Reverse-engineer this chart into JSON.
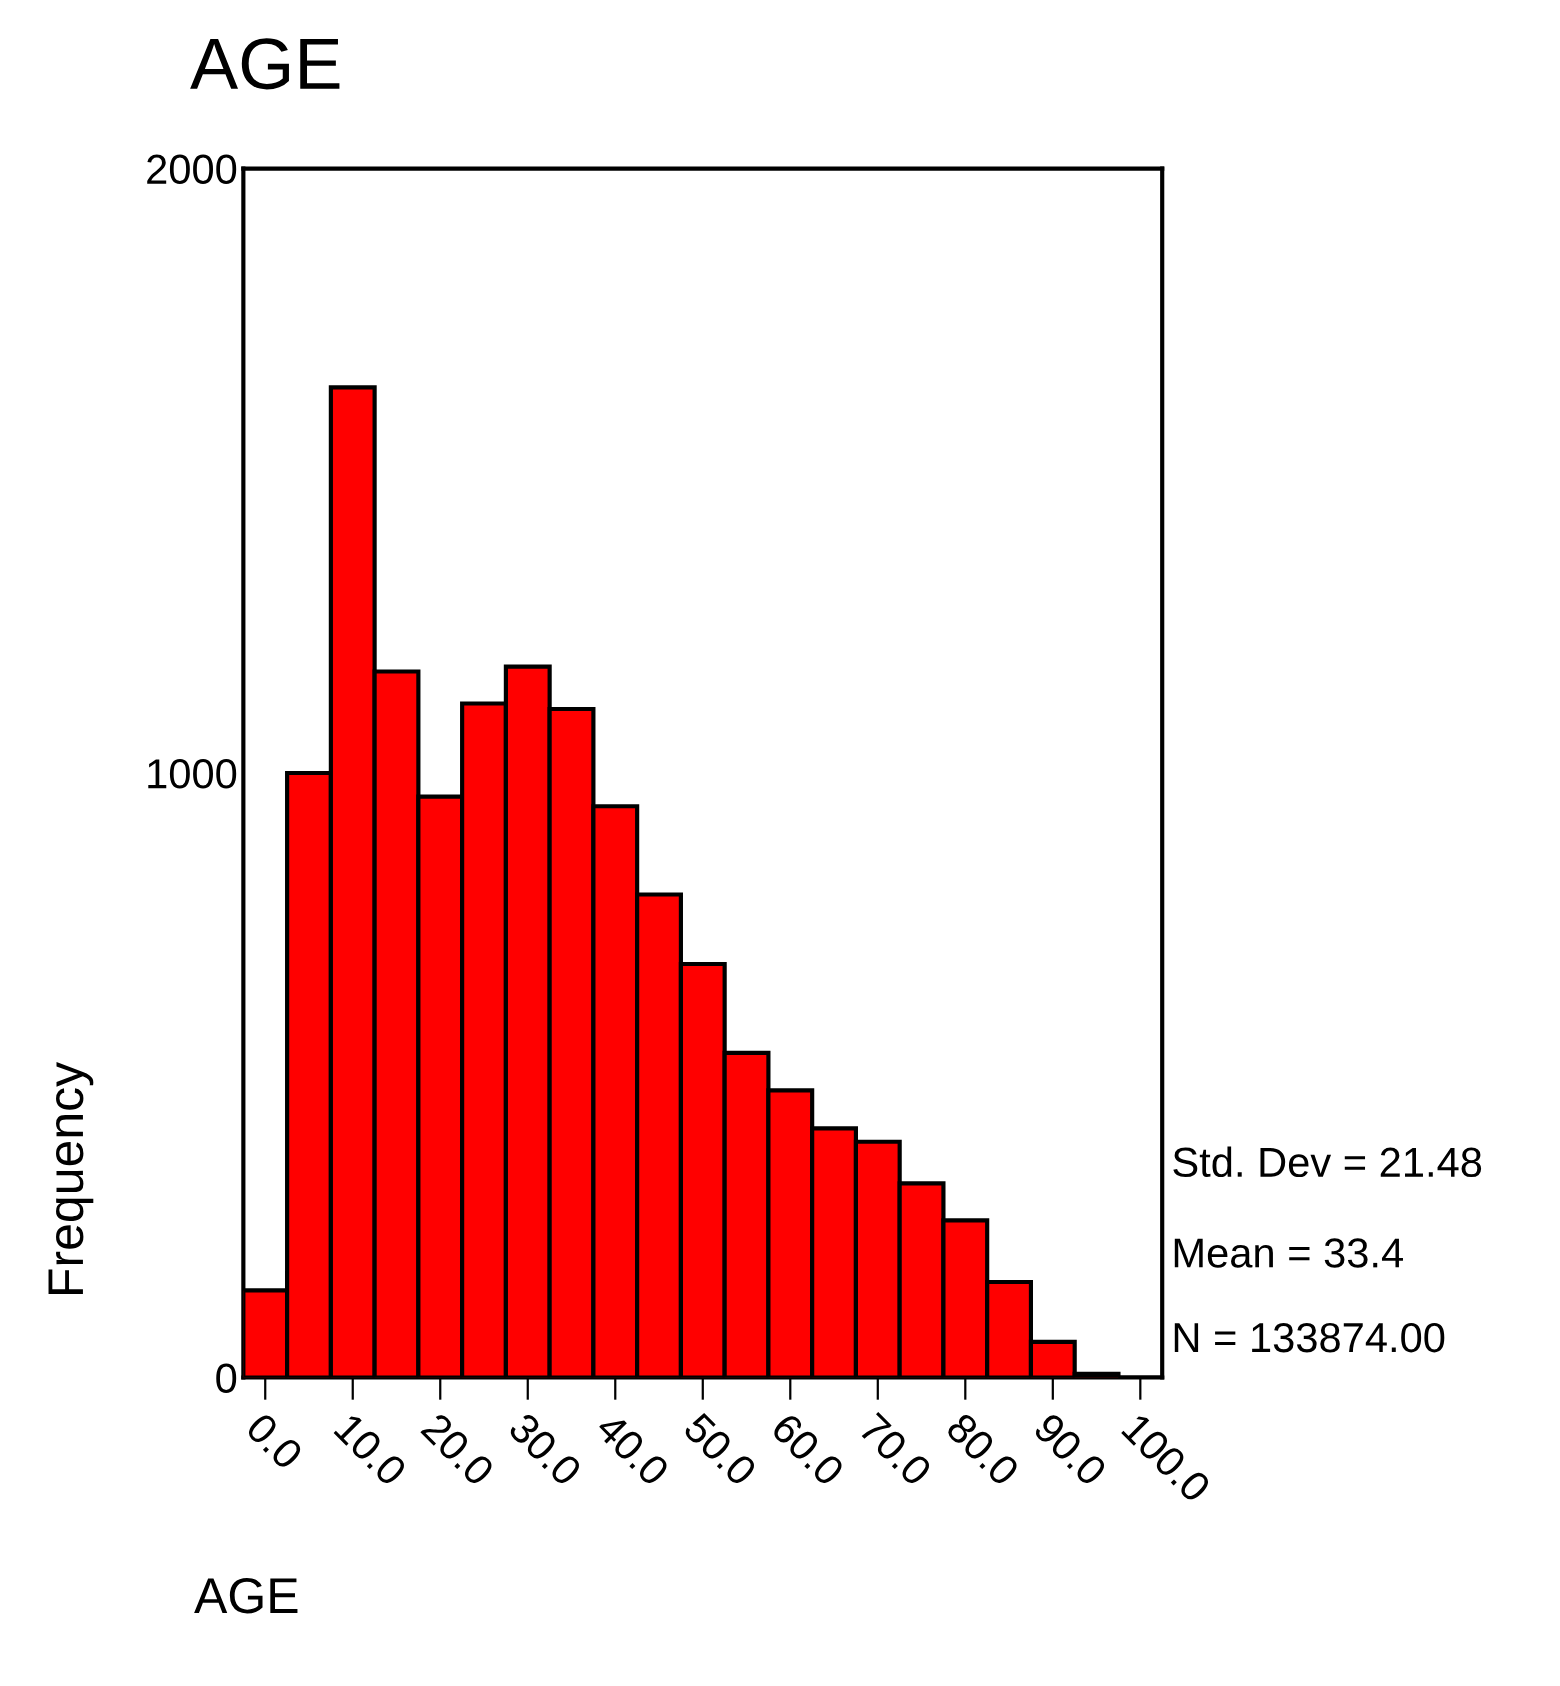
{
  "chart_data": {
    "type": "histogram",
    "title": "AGE",
    "xlabel": "AGE",
    "ylabel": "Frequency",
    "bins": [
      -2.5,
      2.5,
      7.5,
      12.5,
      17.5,
      22.5,
      27.5,
      32.5,
      37.5,
      42.5,
      47.5,
      52.5,
      57.5,
      62.5,
      67.5,
      72.5,
      77.5,
      82.5,
      87.5,
      92.5,
      97.5,
      102.5
    ],
    "values": [
      144,
      1000,
      1638,
      1168,
      961,
      1115,
      1176,
      1106,
      945,
      799,
      684,
      537,
      475,
      412,
      390,
      321,
      260,
      158,
      59,
      6,
      0
    ],
    "color": "#ff0000",
    "xlim": [
      -2.5,
      102.5
    ],
    "xticks": [
      {
        "value": 0,
        "label": "0.0"
      },
      {
        "value": 10,
        "label": "10.0"
      },
      {
        "value": 20,
        "label": "20.0"
      },
      {
        "value": 30,
        "label": "30.0"
      },
      {
        "value": 40,
        "label": "40.0"
      },
      {
        "value": 50,
        "label": "50.0"
      },
      {
        "value": 60,
        "label": "60.0"
      },
      {
        "value": 70,
        "label": "70.0"
      },
      {
        "value": 80,
        "label": "80.0"
      },
      {
        "value": 90,
        "label": "90.0"
      },
      {
        "value": 100,
        "label": "100.0"
      }
    ],
    "ylim": [
      0,
      2000
    ],
    "yticks": [
      0,
      1000,
      2000
    ],
    "grid": false,
    "legend": false,
    "annotations": [
      "Std. Dev = 21.48",
      "Mean = 33.4",
      "N = 133874.00"
    ]
  }
}
